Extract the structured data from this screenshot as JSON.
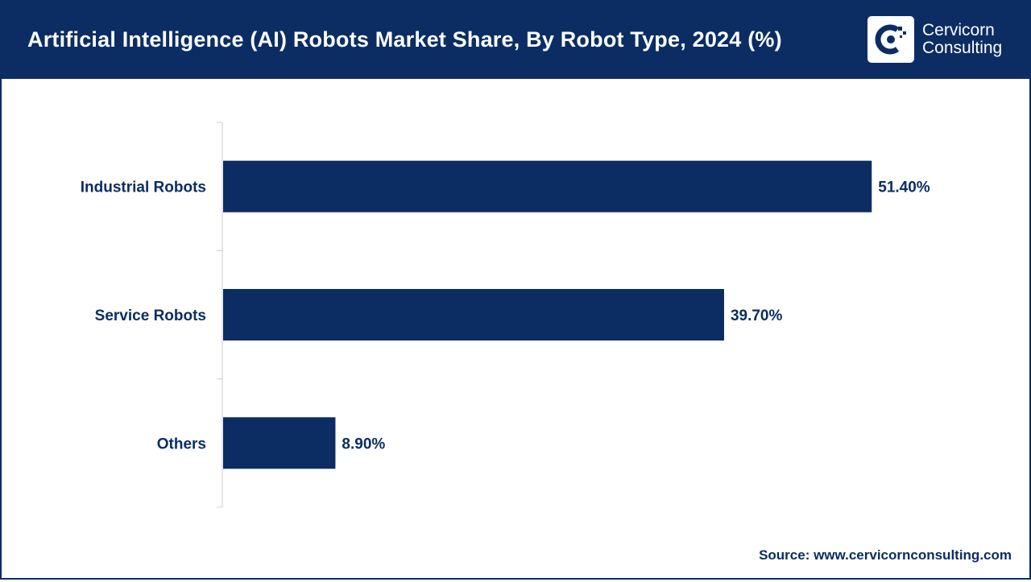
{
  "header": {
    "title": "Artificial Intelligence (AI) Robots Market Share, By Robot Type, 2024 (%)",
    "logo_line1": "Cervicorn",
    "logo_line2": "Consulting",
    "logo_icon": "cervicorn-logo-icon"
  },
  "footer": {
    "source": "Source: www.cervicornconsulting.com"
  },
  "colors": {
    "bar": "#0b2d63",
    "header": "#0b2d63",
    "label": "#0b2d63",
    "axis": "#cccccc"
  },
  "chart_data": {
    "type": "bar",
    "orientation": "horizontal",
    "categories": [
      "Industrial Robots",
      "Service Robots",
      "Others"
    ],
    "values": [
      51.4,
      39.7,
      8.9
    ],
    "value_labels": [
      "51.40%",
      "39.70%",
      "8.90%"
    ],
    "xlim": [
      0,
      60
    ],
    "grid": false,
    "legend": "none"
  }
}
